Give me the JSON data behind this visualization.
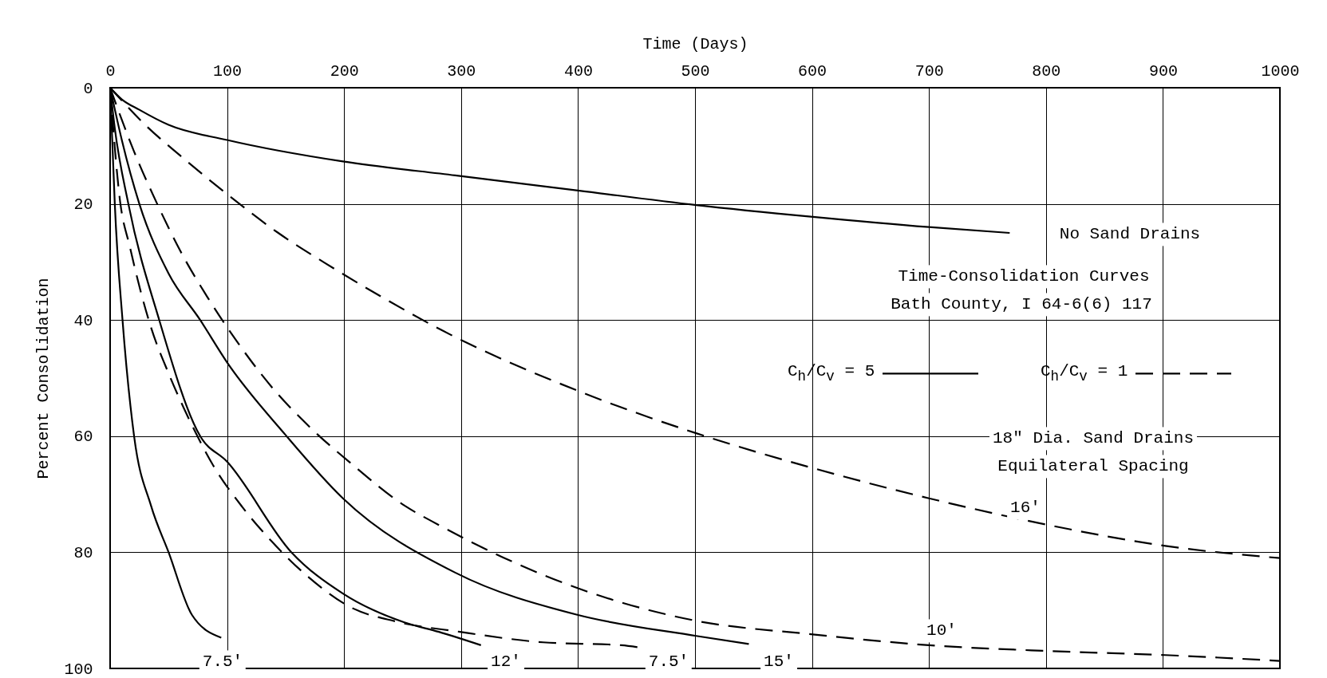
{
  "chart_data": {
    "type": "line",
    "xlabel": "Time (Days)",
    "ylabel": "Percent Consolidation",
    "xlim": [
      0,
      1000
    ],
    "ylim": [
      100,
      0
    ],
    "xticks": [
      0,
      100,
      200,
      300,
      400,
      500,
      600,
      700,
      800,
      900,
      1000
    ],
    "yticks": [
      0,
      20,
      40,
      60,
      80,
      100
    ],
    "grid": true,
    "series": [
      {
        "color": "#000000",
        "line_style": "solid",
        "x": [
          0,
          10,
          25,
          50,
          100,
          199,
          295,
          400,
          501,
          599,
          700,
          769
        ],
        "values": [
          0,
          2,
          3.8,
          6.4,
          9,
          12.7,
          15.1,
          17.7,
          20.2,
          22.2,
          24,
          25
        ]
      },
      {
        "color": "#000000",
        "line_style": "solid",
        "x": [
          0,
          2,
          4,
          10.6,
          20.5,
          35,
          50,
          70,
          95
        ],
        "values": [
          0,
          10,
          20,
          40,
          60,
          72,
          80,
          90.8,
          94.7
        ]
      },
      {
        "color": "#000000",
        "line_style": "solid",
        "x": [
          0,
          4,
          15.6,
          42,
          77,
          100,
          155,
          199,
          252,
          281,
          317
        ],
        "values": [
          0,
          7,
          20,
          40,
          60,
          64.4,
          80,
          87.1,
          92.1,
          93.7,
          96
        ]
      },
      {
        "color": "#000000",
        "line_style": "solid",
        "x": [
          0,
          10,
          25,
          50,
          77,
          100,
          150,
          199,
          295,
          400,
          501,
          546
        ],
        "values": [
          0,
          9,
          20,
          32,
          40,
          47.3,
          59.8,
          70.7,
          83.5,
          90.8,
          94.4,
          95.8
        ]
      },
      {
        "color": "#000000",
        "line_style": "dashed",
        "x": [
          0,
          8.3,
          17,
          35,
          50,
          68,
          88,
          113,
          138,
          168,
          206,
          244,
          299,
          370,
          437,
          453
        ],
        "values": [
          0,
          19.2,
          27.5,
          41.3,
          49.2,
          57.3,
          65,
          72.2,
          78.1,
          84,
          89.5,
          91.9,
          93.7,
          95.5,
          96,
          96.4
        ]
      },
      {
        "color": "#000000",
        "line_style": "dashed",
        "x": [
          0,
          20.5,
          40,
          60,
          83,
          107,
          138,
          171,
          206,
          252,
          281,
          400,
          501,
          599,
          700,
          802,
          902,
          1000
        ],
        "values": [
          0,
          11,
          19.9,
          28.1,
          36,
          43.3,
          51.5,
          58.5,
          64.7,
          72,
          75.3,
          86.2,
          91.8,
          94.1,
          96,
          97,
          97.7,
          98.7
        ]
      },
      {
        "color": "#000000",
        "line_style": "dashed",
        "x": [
          0,
          30,
          60,
          103,
          143,
          183,
          232,
          283,
          400,
          501,
          599,
          700,
          802,
          902,
          1000
        ],
        "values": [
          0,
          6.4,
          11.7,
          18.8,
          24.9,
          30.1,
          36,
          41.7,
          52.2,
          59.5,
          65.4,
          70.7,
          75.3,
          78.9,
          81
        ]
      }
    ],
    "annotations": [
      "No Sand Drains",
      "7.5'",
      "12'",
      "7.5'",
      "15'",
      "10'",
      "16'",
      "Time-Consolidation Curves",
      "Bath County, I 64-6(6) 117",
      "C$_{h}$/C$_{v}$ = 5",
      "C$_{h}$/C$_{v}$ = 1",
      "18\" Dia. Sand Drains",
      "Equilateral Spacing"
    ]
  }
}
